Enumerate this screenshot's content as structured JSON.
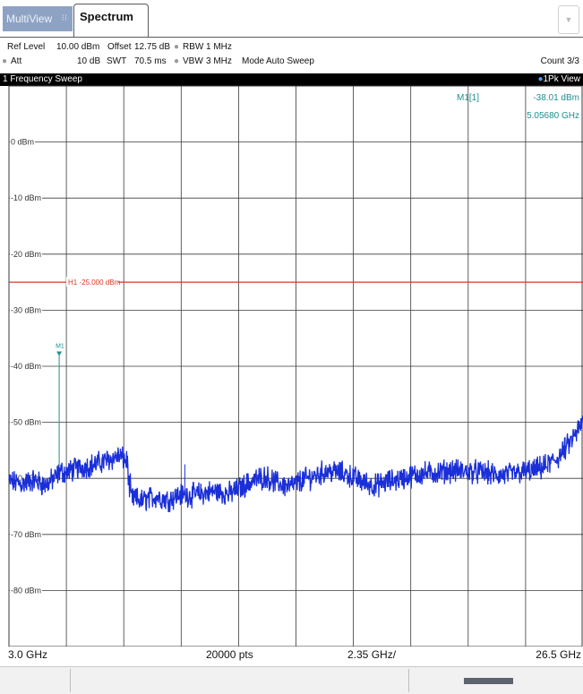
{
  "tabs": {
    "multiview": "MultiView",
    "spectrum": "Spectrum"
  },
  "settings": {
    "ref_level_label": "Ref Level",
    "ref_level_value": "10.00 dBm",
    "offset_label": "Offset",
    "offset_value": "12.75 dB",
    "rbw_label": "RBW",
    "rbw_value": "1 MHz",
    "att_label": "Att",
    "att_value": "10 dB",
    "swt_label": "SWT",
    "swt_value": "70.5 ms",
    "vbw_label": "VBW",
    "vbw_value": "3 MHz",
    "mode_label": "Mode",
    "mode_value": "Auto Sweep",
    "count": "Count 3/3"
  },
  "window": {
    "title": "1 Frequency Sweep",
    "trace_view": "1Pk View"
  },
  "marker": {
    "name": "M1[1]",
    "level": "-38.01 dBm",
    "freq": "5.05680 GHz",
    "tag": "M1"
  },
  "footer": {
    "start": "3.0 GHz",
    "points": "20000 pts",
    "span_per_div": "2.35 GHz/",
    "stop": "26.5 GHz"
  },
  "colors": {
    "trace": "#1a2fd8",
    "threshold": "#d33a24",
    "marker": "#1f8f8f",
    "grid": "#3a3a3a"
  },
  "chart_data": {
    "type": "line",
    "x_unit": "GHz",
    "y_unit": "dBm",
    "xlim": [
      3.0,
      26.5
    ],
    "ylim": [
      -90,
      10
    ],
    "grid": true,
    "y_tick_labels": [
      "0 dBm",
      "-10 dBm",
      "-20 dBm",
      "-30 dBm",
      "-40 dBm",
      "-50 dBm",
      "-60 dBm",
      "-70 dBm",
      "-80 dBm"
    ],
    "y_tick_values": [
      0,
      -10,
      -20,
      -30,
      -40,
      -50,
      -60,
      -70,
      -80
    ],
    "threshold": {
      "label": "H1 -25.000 dBm",
      "value": -25
    },
    "marker": {
      "label": "M1",
      "x": 5.0568,
      "y": -38.01
    },
    "series": [
      {
        "x": [
          3.0,
          3.5,
          4.0,
          4.5,
          5.0,
          5.05,
          5.3,
          5.6,
          6.0,
          6.5,
          7.0,
          7.5,
          7.9,
          8.0,
          8.5,
          9.0,
          9.5,
          10.0,
          10.5,
          11.0,
          11.5,
          12.0,
          12.5,
          13.0,
          13.5,
          14.0,
          14.5,
          15.0,
          15.5,
          16.0,
          16.5,
          17.0,
          17.5,
          18.0,
          18.5,
          19.0,
          19.5,
          20.0,
          20.5,
          21.0,
          21.5,
          22.0,
          22.5,
          23.0,
          23.5,
          24.0,
          24.5,
          25.0,
          25.5,
          26.0,
          26.5
        ],
        "y": [
          -60.5,
          -61.0,
          -60.3,
          -61.2,
          -59.5,
          -58.7,
          -59.0,
          -58.5,
          -58.0,
          -57.5,
          -56.8,
          -56.0,
          -57.2,
          -63.5,
          -64.0,
          -63.2,
          -63.8,
          -62.9,
          -63.0,
          -62.6,
          -62.3,
          -62.8,
          -61.6,
          -60.4,
          -59.7,
          -60.9,
          -61.5,
          -60.3,
          -59.6,
          -58.7,
          -58.9,
          -59.6,
          -60.7,
          -61.3,
          -60.6,
          -60.1,
          -59.5,
          -59.1,
          -59.0,
          -58.6,
          -58.7,
          -58.8,
          -59.0,
          -59.5,
          -59.3,
          -58.9,
          -58.6,
          -57.8,
          -56.2,
          -53.5,
          -50.0
        ]
      }
    ]
  }
}
